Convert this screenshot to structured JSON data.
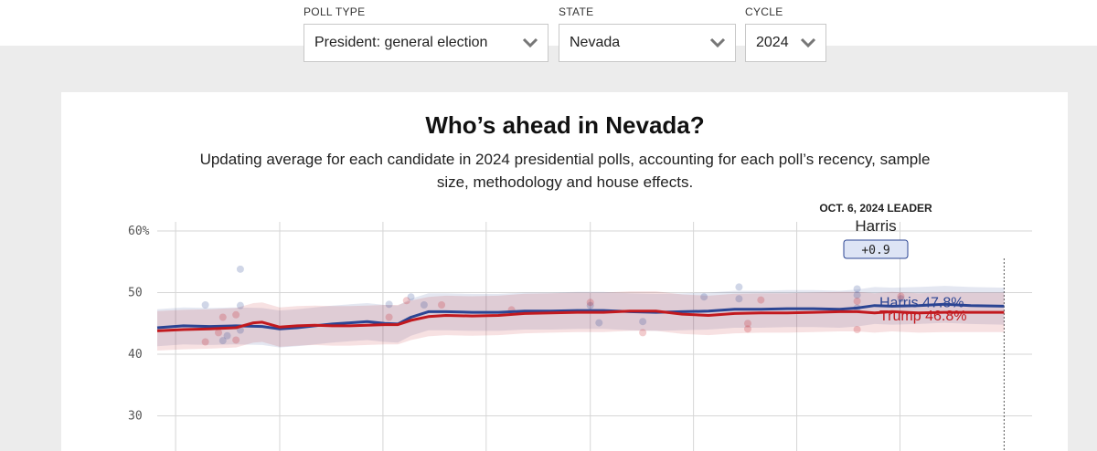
{
  "filters": {
    "poll_type": {
      "label": "POLL TYPE",
      "value": "President: general election"
    },
    "state": {
      "label": "STATE",
      "value": "Nevada"
    },
    "cycle": {
      "label": "CYCLE",
      "value": "2024"
    }
  },
  "chart_data": {
    "type": "line",
    "title": "Who’s ahead in Nevada?",
    "subtitle": "Updating average for each candidate in 2024 presidential polls, accounting for each poll’s recency, sample size, methodology and house effects.",
    "y_ticks": [
      {
        "value": 60,
        "label": "60%"
      },
      {
        "value": 50,
        "label": "50"
      },
      {
        "value": 40,
        "label": "40"
      },
      {
        "value": 30,
        "label": "30"
      }
    ],
    "ylim": [
      27,
      62
    ],
    "xlim": [
      0,
      100
    ],
    "x_gridlines": [
      2.1,
      14.0,
      25.8,
      37.6,
      49.5,
      61.3,
      73.1,
      84.9,
      96.8
    ],
    "grid": true,
    "leader": {
      "heading": "OCT. 6, 2024 LEADER",
      "name": "Harris",
      "margin": "+0.9",
      "x": 96.8
    },
    "colors": {
      "harris": "#2b4593",
      "trump": "#c2191e"
    },
    "series": [
      {
        "name": "Harris",
        "key": "harris",
        "end_label": "Harris 47.8%",
        "x": [
          0,
          3,
          6,
          9,
          12,
          14,
          16,
          18,
          20,
          22,
          24,
          26,
          27.5,
          29,
          31,
          33,
          36,
          39,
          42,
          45,
          48,
          51,
          54,
          57,
          60,
          63,
          66,
          69,
          72,
          75,
          78,
          80,
          82,
          84,
          87,
          90,
          93,
          96.8
        ],
        "values": [
          44.3,
          44.6,
          44.5,
          44.6,
          44.5,
          44.1,
          44.3,
          44.6,
          44.9,
          45.1,
          45.3,
          45.0,
          44.9,
          46.0,
          46.9,
          46.9,
          46.8,
          46.8,
          47.0,
          47.0,
          47.1,
          47.1,
          46.9,
          46.8,
          46.9,
          47.0,
          47.3,
          47.3,
          47.4,
          47.4,
          47.3,
          47.5,
          47.9,
          47.8,
          47.9,
          48.1,
          47.9,
          47.8
        ],
        "band_width": 3.0
      },
      {
        "name": "Trump",
        "key": "trump",
        "end_label": "Trump 46.8%",
        "x": [
          0,
          3,
          6,
          9,
          11,
          12,
          14,
          16,
          18,
          20,
          22,
          24,
          26,
          27.5,
          29,
          31,
          33,
          36,
          39,
          42,
          45,
          48,
          51,
          54,
          57,
          60,
          63,
          66,
          69,
          72,
          75,
          78,
          80,
          82,
          84,
          87,
          90,
          93,
          96.8
        ],
        "values": [
          43.8,
          44.0,
          44.1,
          44.3,
          45.1,
          45.2,
          44.4,
          44.6,
          44.7,
          44.6,
          44.6,
          44.7,
          44.8,
          44.8,
          45.5,
          46.1,
          46.3,
          46.2,
          46.3,
          46.6,
          46.7,
          46.8,
          46.8,
          47.0,
          47.0,
          46.5,
          46.3,
          46.6,
          46.7,
          46.7,
          46.8,
          46.9,
          46.9,
          46.7,
          46.9,
          46.7,
          46.8,
          46.8,
          46.8
        ],
        "band_width": 3.2
      }
    ],
    "polls": [
      {
        "x": 5.5,
        "y": 48,
        "who": "harris"
      },
      {
        "x": 9.5,
        "y": 53.8,
        "who": "harris"
      },
      {
        "x": 9.5,
        "y": 47.9,
        "who": "harris"
      },
      {
        "x": 9.5,
        "y": 43.9,
        "who": "harris"
      },
      {
        "x": 7.5,
        "y": 42.2,
        "who": "harris"
      },
      {
        "x": 8.0,
        "y": 43.0,
        "who": "harris"
      },
      {
        "x": 26.5,
        "y": 48.1,
        "who": "harris"
      },
      {
        "x": 29,
        "y": 49.3,
        "who": "harris"
      },
      {
        "x": 30.5,
        "y": 48.0,
        "who": "harris"
      },
      {
        "x": 49.5,
        "y": 47.9,
        "who": "harris"
      },
      {
        "x": 50.5,
        "y": 45.1,
        "who": "harris"
      },
      {
        "x": 55.5,
        "y": 45.3,
        "who": "harris"
      },
      {
        "x": 62.5,
        "y": 49.3,
        "who": "harris"
      },
      {
        "x": 66.5,
        "y": 50.9,
        "who": "harris"
      },
      {
        "x": 66.5,
        "y": 49.0,
        "who": "harris"
      },
      {
        "x": 80,
        "y": 50.6,
        "who": "harris"
      },
      {
        "x": 80,
        "y": 49.6,
        "who": "harris"
      },
      {
        "x": 80,
        "y": 47.5,
        "who": "harris"
      },
      {
        "x": 85,
        "y": 49.0,
        "who": "harris"
      },
      {
        "x": 5.5,
        "y": 42.0,
        "who": "trump"
      },
      {
        "x": 7.5,
        "y": 46.0,
        "who": "trump"
      },
      {
        "x": 9.0,
        "y": 46.4,
        "who": "trump"
      },
      {
        "x": 9.0,
        "y": 42.3,
        "who": "trump"
      },
      {
        "x": 7.0,
        "y": 43.5,
        "who": "trump"
      },
      {
        "x": 26.5,
        "y": 46.0,
        "who": "trump"
      },
      {
        "x": 28.5,
        "y": 48.7,
        "who": "trump"
      },
      {
        "x": 32.5,
        "y": 48.0,
        "who": "trump"
      },
      {
        "x": 40.5,
        "y": 47.2,
        "who": "trump"
      },
      {
        "x": 49.5,
        "y": 48.4,
        "who": "trump"
      },
      {
        "x": 55.5,
        "y": 43.5,
        "who": "trump"
      },
      {
        "x": 67.5,
        "y": 44.1,
        "who": "trump"
      },
      {
        "x": 67.5,
        "y": 45.0,
        "who": "trump"
      },
      {
        "x": 69,
        "y": 48.8,
        "who": "trump"
      },
      {
        "x": 80,
        "y": 44.0,
        "who": "trump"
      },
      {
        "x": 80,
        "y": 48.6,
        "who": "trump"
      },
      {
        "x": 85,
        "y": 49.4,
        "who": "trump"
      }
    ]
  }
}
